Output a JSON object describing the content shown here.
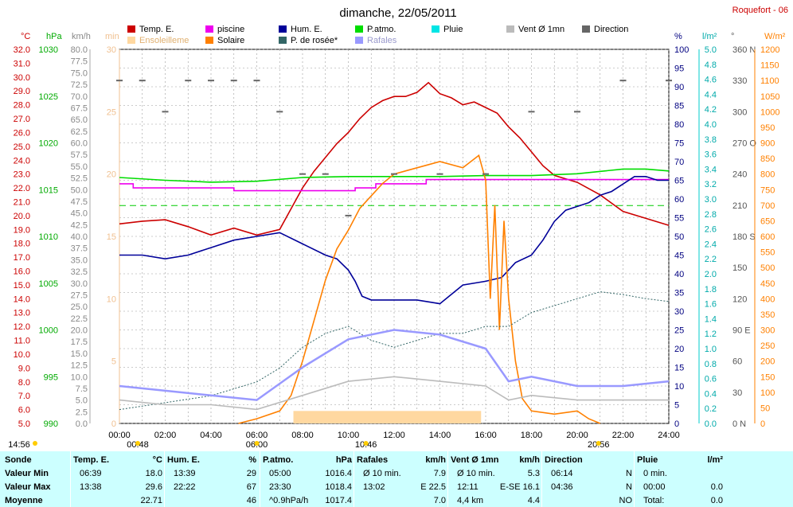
{
  "header": {
    "title": "dimanche, 22/05/2011",
    "station": "Roquefort - 06"
  },
  "axes": {
    "temp": {
      "unit": "°C",
      "min": 5,
      "max": 32,
      "step": 1,
      "color": "#cc0000"
    },
    "hpa": {
      "unit": "hPa",
      "min": 990,
      "max": 1030,
      "step": 5,
      "color": "#00aa00"
    },
    "kmh": {
      "unit": "km/h",
      "min": 0,
      "max": 80,
      "step": 2.5,
      "color": "#888888"
    },
    "min": {
      "unit": "min",
      "min": 0,
      "max": 30,
      "step": 5,
      "color": "#f0c090"
    },
    "pct": {
      "unit": "%",
      "min": 0,
      "max": 100,
      "step": 5,
      "color": "#000080"
    },
    "lm2": {
      "unit": "l/m²",
      "min": 0,
      "max": 5,
      "step": 0.2,
      "color": "#00aaaa"
    },
    "deg": {
      "unit": "°",
      "min": 0,
      "max": 360,
      "step": 30,
      "color": "#555555",
      "labels": [
        "0 N",
        "30",
        "60",
        "90 E",
        "120",
        "150",
        "180 S",
        "210",
        "240",
        "270 O",
        "300",
        "330",
        "360 N"
      ]
    },
    "wm2": {
      "unit": "W/m²",
      "min": 0,
      "max": 1200,
      "step": 50,
      "color": "#ff8000"
    },
    "time": {
      "labels": [
        "00:00",
        "02:00",
        "04:00",
        "06:00",
        "08:00",
        "10:00",
        "12:00",
        "14:00",
        "16:00",
        "18:00",
        "20:00",
        "22:00",
        "24:00"
      ]
    }
  },
  "time_markers": [
    {
      "label": "14:56",
      "hour": null
    },
    {
      "label": "00:48",
      "hour": 0.8
    },
    {
      "label": "06:00",
      "hour": 6.0
    },
    {
      "label": "10:46",
      "hour": 10.77
    },
    {
      "label": "20:56",
      "hour": 20.93
    }
  ],
  "legend": [
    {
      "label": "Temp. E.",
      "color": "#cc0000"
    },
    {
      "label": "piscine",
      "color": "#ee00ee"
    },
    {
      "label": "Hum. E.",
      "color": "#000099"
    },
    {
      "label": "P.atmo.",
      "color": "#00dd00"
    },
    {
      "label": "Pluie",
      "color": "#00e5e5"
    },
    {
      "label": "Vent Ø 1mn",
      "color": "#bbbbbb"
    },
    {
      "label": "Direction",
      "color": "#666666"
    },
    {
      "label": "Ensoleilleme",
      "color": "#ffd8a0"
    },
    {
      "label": "Solaire",
      "color": "#ff8000"
    },
    {
      "label": "P. de rosée*",
      "color": "#336666"
    },
    {
      "label": "Rafales",
      "color": "#9999ff"
    }
  ],
  "chart_data": {
    "type": "line",
    "x_unit": "hour",
    "xlim": [
      0,
      24
    ],
    "series": [
      {
        "name": "Temp. E.",
        "axis": "temp",
        "color": "#cc0000",
        "points": [
          [
            0,
            19.4
          ],
          [
            1,
            19.6
          ],
          [
            2,
            19.7
          ],
          [
            3,
            19.2
          ],
          [
            4,
            18.6
          ],
          [
            5,
            19.1
          ],
          [
            6,
            18.6
          ],
          [
            7,
            19.0
          ],
          [
            7.5,
            20.5
          ],
          [
            8,
            22.0
          ],
          [
            8.5,
            23.2
          ],
          [
            9,
            24.2
          ],
          [
            9.5,
            25.2
          ],
          [
            10,
            26.0
          ],
          [
            10.5,
            27.0
          ],
          [
            11,
            27.8
          ],
          [
            11.5,
            28.3
          ],
          [
            12,
            28.6
          ],
          [
            12.5,
            28.6
          ],
          [
            13,
            28.9
          ],
          [
            13.5,
            29.6
          ],
          [
            14,
            28.8
          ],
          [
            14.5,
            28.5
          ],
          [
            15,
            28.0
          ],
          [
            15.5,
            28.2
          ],
          [
            16,
            27.8
          ],
          [
            16.5,
            27.4
          ],
          [
            17,
            26.4
          ],
          [
            17.5,
            25.6
          ],
          [
            18,
            24.6
          ],
          [
            18.5,
            23.6
          ],
          [
            19,
            22.9
          ],
          [
            20,
            22.4
          ],
          [
            21,
            21.5
          ],
          [
            22,
            20.3
          ],
          [
            23,
            19.8
          ],
          [
            24,
            19.3
          ]
        ]
      },
      {
        "name": "piscine",
        "axis": "temp",
        "color": "#ee00ee",
        "points": [
          [
            0,
            22.3
          ],
          [
            0.6,
            22.3
          ],
          [
            0.6,
            22.0
          ],
          [
            5,
            22.0
          ],
          [
            5,
            21.8
          ],
          [
            10.3,
            21.8
          ],
          [
            10.3,
            22.0
          ],
          [
            11.2,
            22.0
          ],
          [
            11.2,
            22.3
          ],
          [
            13.4,
            22.3
          ],
          [
            13.4,
            22.6
          ],
          [
            24,
            22.6
          ]
        ]
      },
      {
        "name": "Hum. E.",
        "axis": "pct",
        "color": "#000099",
        "points": [
          [
            0,
            45
          ],
          [
            1,
            45
          ],
          [
            2,
            44
          ],
          [
            3,
            45
          ],
          [
            4,
            47
          ],
          [
            5,
            49
          ],
          [
            6,
            50
          ],
          [
            7,
            51
          ],
          [
            8,
            48
          ],
          [
            9,
            45
          ],
          [
            9.5,
            44
          ],
          [
            10,
            41
          ],
          [
            10.3,
            38
          ],
          [
            10.6,
            34
          ],
          [
            11,
            33
          ],
          [
            12,
            33
          ],
          [
            13,
            33
          ],
          [
            14,
            32
          ],
          [
            15,
            37
          ],
          [
            16,
            38
          ],
          [
            16.7,
            39
          ],
          [
            17.3,
            43
          ],
          [
            18,
            45
          ],
          [
            18.5,
            49
          ],
          [
            19,
            54
          ],
          [
            19.5,
            57
          ],
          [
            20,
            58
          ],
          [
            20.5,
            59
          ],
          [
            21,
            61
          ],
          [
            21.5,
            62
          ],
          [
            22,
            64
          ],
          [
            22.5,
            66
          ],
          [
            23,
            66
          ],
          [
            23.5,
            65
          ],
          [
            24,
            65
          ]
        ]
      },
      {
        "name": "P.atmo.",
        "axis": "hpa",
        "color": "#00dd00",
        "points": [
          [
            0,
            1016.3
          ],
          [
            2,
            1016.0
          ],
          [
            4,
            1015.8
          ],
          [
            6,
            1015.9
          ],
          [
            8,
            1016.3
          ],
          [
            10,
            1016.4
          ],
          [
            12,
            1016.4
          ],
          [
            14,
            1016.4
          ],
          [
            16,
            1016.5
          ],
          [
            18,
            1016.5
          ],
          [
            20,
            1016.7
          ],
          [
            22,
            1017.2
          ],
          [
            23,
            1017.2
          ],
          [
            24,
            1017.0
          ]
        ]
      },
      {
        "name": "Solaire",
        "axis": "wm2",
        "color": "#ff8000",
        "points": [
          [
            5.2,
            0
          ],
          [
            6,
            15
          ],
          [
            7,
            40
          ],
          [
            7.5,
            90
          ],
          [
            8,
            200
          ],
          [
            8.5,
            330
          ],
          [
            9,
            460
          ],
          [
            9.5,
            560
          ],
          [
            10,
            620
          ],
          [
            10.5,
            690
          ],
          [
            11,
            730
          ],
          [
            11.5,
            770
          ],
          [
            12,
            800
          ],
          [
            13,
            820
          ],
          [
            14,
            840
          ],
          [
            15,
            820
          ],
          [
            15.7,
            860
          ],
          [
            16,
            780
          ],
          [
            16.2,
            400
          ],
          [
            16.4,
            700
          ],
          [
            16.6,
            300
          ],
          [
            16.8,
            650
          ],
          [
            17,
            400
          ],
          [
            17.3,
            200
          ],
          [
            17.6,
            80
          ],
          [
            18,
            40
          ],
          [
            19,
            30
          ],
          [
            20,
            40
          ],
          [
            20.5,
            15
          ],
          [
            21,
            0
          ]
        ]
      },
      {
        "name": "P. de rosée*",
        "axis": "temp",
        "color": "#336666",
        "points": [
          [
            0,
            6.0
          ],
          [
            2,
            6.5
          ],
          [
            4,
            7.0
          ],
          [
            6,
            8.0
          ],
          [
            7,
            9.0
          ],
          [
            8,
            10.5
          ],
          [
            9,
            11.5
          ],
          [
            10,
            12.0
          ],
          [
            11,
            11.0
          ],
          [
            12,
            10.5
          ],
          [
            13,
            11.0
          ],
          [
            14,
            11.5
          ],
          [
            15,
            11.5
          ],
          [
            16,
            12.0
          ],
          [
            17,
            12.0
          ],
          [
            18,
            13.0
          ],
          [
            19,
            13.5
          ],
          [
            20,
            14.0
          ],
          [
            21,
            14.5
          ],
          [
            22,
            14.3
          ],
          [
            23,
            14.0
          ],
          [
            24,
            13.8
          ]
        ]
      },
      {
        "name": "Vent Ø 1mn",
        "axis": "kmh",
        "color": "#bbbbbb",
        "points": [
          [
            0,
            5
          ],
          [
            2,
            4
          ],
          [
            4,
            4
          ],
          [
            6,
            3
          ],
          [
            8,
            6
          ],
          [
            10,
            9
          ],
          [
            12,
            10
          ],
          [
            14,
            9
          ],
          [
            16,
            8
          ],
          [
            17,
            5
          ],
          [
            18,
            6
          ],
          [
            20,
            5
          ],
          [
            22,
            5
          ],
          [
            24,
            5
          ]
        ]
      },
      {
        "name": "Rafales",
        "axis": "kmh",
        "color": "#9999ff",
        "points": [
          [
            0,
            8
          ],
          [
            2,
            7
          ],
          [
            4,
            6
          ],
          [
            6,
            5
          ],
          [
            8,
            12
          ],
          [
            10,
            18
          ],
          [
            12,
            20
          ],
          [
            14,
            19
          ],
          [
            16,
            16
          ],
          [
            17,
            9
          ],
          [
            18,
            10
          ],
          [
            20,
            8
          ],
          [
            22,
            8
          ],
          [
            24,
            9
          ]
        ]
      },
      {
        "name": "Ensoleilleme",
        "axis": "min",
        "color": "#ffd8a0",
        "points": [
          [
            7.6,
            1
          ],
          [
            15.8,
            1
          ]
        ]
      }
    ],
    "direction_points": [
      [
        0,
        330
      ],
      [
        1,
        330
      ],
      [
        2,
        300
      ],
      [
        3,
        330
      ],
      [
        4,
        330
      ],
      [
        5,
        330
      ],
      [
        6,
        330
      ],
      [
        7,
        300
      ],
      [
        8,
        240
      ],
      [
        9,
        240
      ],
      [
        10,
        200
      ],
      [
        12,
        240
      ],
      [
        14,
        240
      ],
      [
        16,
        240
      ],
      [
        18,
        300
      ],
      [
        20,
        300
      ],
      [
        22,
        330
      ],
      [
        24,
        330
      ]
    ]
  },
  "summary": {
    "columns": [
      {
        "header": "Sonde",
        "unit": "",
        "rows": [
          "Valeur Min",
          "Valeur Max",
          "Moyenne"
        ]
      },
      {
        "header": "Temp. E.",
        "unit": "°C",
        "cells": [
          [
            "06:39",
            "18.0"
          ],
          [
            "13:38",
            "29.6"
          ],
          [
            "",
            "22.71"
          ]
        ]
      },
      {
        "header": "Hum. E.",
        "unit": "%",
        "cells": [
          [
            "13:39",
            "29"
          ],
          [
            "22:22",
            "67"
          ],
          [
            "",
            "46"
          ]
        ]
      },
      {
        "header": "P.atmo.",
        "unit": "hPa",
        "cells": [
          [
            "05:00",
            "1016.4"
          ],
          [
            "23:30",
            "1018.4"
          ],
          [
            "^0.9hPa/h",
            "1017.4"
          ]
        ]
      },
      {
        "header": "Rafales",
        "unit": "km/h",
        "cells": [
          [
            "Ø 10 min.",
            "7.9"
          ],
          [
            "13:02",
            "E 22.5"
          ],
          [
            "",
            "7.0"
          ]
        ]
      },
      {
        "header": "Vent Ø 1mn",
        "unit": "km/h",
        "cells": [
          [
            "Ø 10 min.",
            "5.3"
          ],
          [
            "12:11",
            "E-SE 16.1"
          ],
          [
            "4,4 km",
            "4.4"
          ]
        ]
      },
      {
        "header": "Direction",
        "unit": "",
        "cells": [
          [
            "06:14",
            "N"
          ],
          [
            "04:36",
            "N"
          ],
          [
            "",
            "NO"
          ]
        ]
      },
      {
        "header": "Pluie",
        "unit": "l/m²",
        "cells": [
          [
            "0 min.",
            ""
          ],
          [
            "00:00",
            "0.0"
          ],
          [
            "Total:",
            "0.0"
          ]
        ]
      }
    ]
  }
}
